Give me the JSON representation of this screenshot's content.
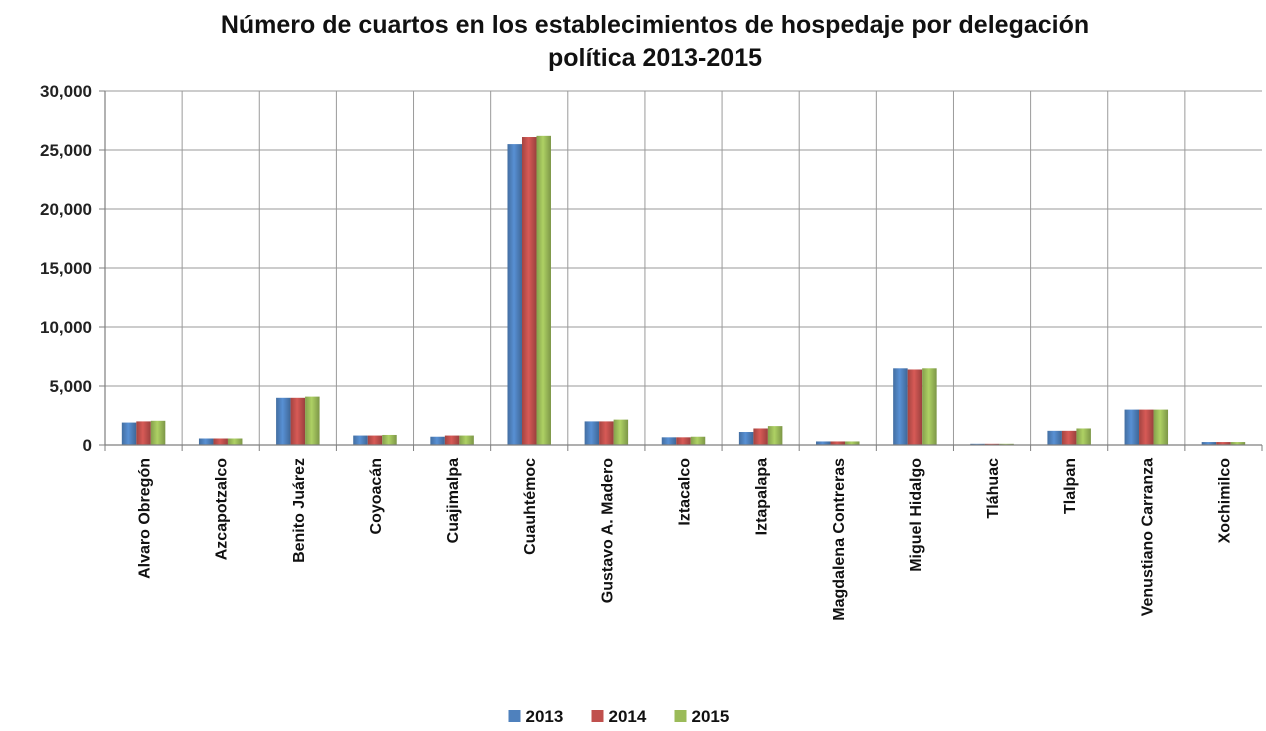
{
  "chart_data": {
    "type": "bar",
    "title_lines": [
      "Número de cuartos en los establecimientos de hospedaje por delegación",
      "política 2013-2015"
    ],
    "xlabel": "",
    "ylabel": "",
    "ylim": [
      0,
      30000
    ],
    "yticks": [
      "0",
      "5,000",
      "10,000",
      "15,000",
      "20,000",
      "25,000",
      "30,000"
    ],
    "ytick_values": [
      0,
      5000,
      10000,
      15000,
      20000,
      25000,
      30000
    ],
    "grid": true,
    "legend_position": "bottom",
    "categories": [
      "Alvaro Obregón",
      "Azcapotzalco",
      "Benito Juárez",
      "Coyoacán",
      "Cuajimalpa",
      "Cuauhtémoc",
      "Gustavo A. Madero",
      "Iztacalco",
      "Iztapalapa",
      "Magdalena Contreras",
      "Miguel Hidalgo",
      "Tláhuac",
      "Tlalpan",
      "Venustiano Carranza",
      "Xochimilco"
    ],
    "series": [
      {
        "name": "2013",
        "color": "#4F81BD",
        "values": [
          1900,
          550,
          4000,
          800,
          700,
          25500,
          2000,
          650,
          1100,
          300,
          6500,
          100,
          1200,
          3000,
          250
        ]
      },
      {
        "name": "2014",
        "color": "#C0504D",
        "values": [
          2000,
          550,
          4000,
          800,
          800,
          26100,
          2000,
          650,
          1400,
          300,
          6400,
          100,
          1200,
          3000,
          250
        ]
      },
      {
        "name": "2015",
        "color": "#9BBB59",
        "values": [
          2050,
          550,
          4100,
          850,
          800,
          26200,
          2150,
          700,
          1600,
          300,
          6500,
          100,
          1400,
          3000,
          250
        ]
      }
    ]
  }
}
